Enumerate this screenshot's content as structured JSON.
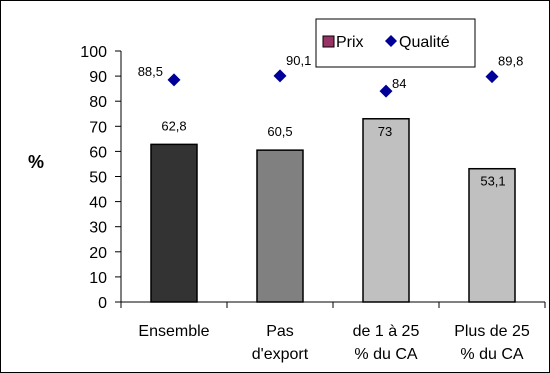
{
  "chart_data": {
    "type": "bar",
    "title": "",
    "xlabel": "",
    "ylabel": "%",
    "ylim": [
      0,
      100
    ],
    "yticks": [
      "0",
      "10",
      "20",
      "30",
      "40",
      "50",
      "60",
      "70",
      "80",
      "90",
      "100"
    ],
    "categories": [
      [
        "Ensemble"
      ],
      [
        "Pas",
        "d'export"
      ],
      [
        "de 1 à 25",
        "% du CA"
      ],
      [
        "Plus de 25",
        "% du CA"
      ]
    ],
    "series": [
      {
        "name": "Prix",
        "kind": "bar",
        "values": [
          62.8,
          60.5,
          73,
          53.1
        ],
        "labels": [
          "62,8",
          "60,5",
          "73",
          "53,1"
        ],
        "colors": [
          "#333333",
          "#808080",
          "#c0c0c0",
          "#c0c0c0"
        ],
        "legend_color": "#993366"
      },
      {
        "name": "Qualité",
        "kind": "marker",
        "values": [
          88.5,
          90.1,
          84,
          89.8
        ],
        "labels": [
          "88,5",
          "90,1",
          "84",
          "89,8"
        ],
        "color": "#000099"
      }
    ],
    "legend_position": "top-right",
    "grid": false
  }
}
